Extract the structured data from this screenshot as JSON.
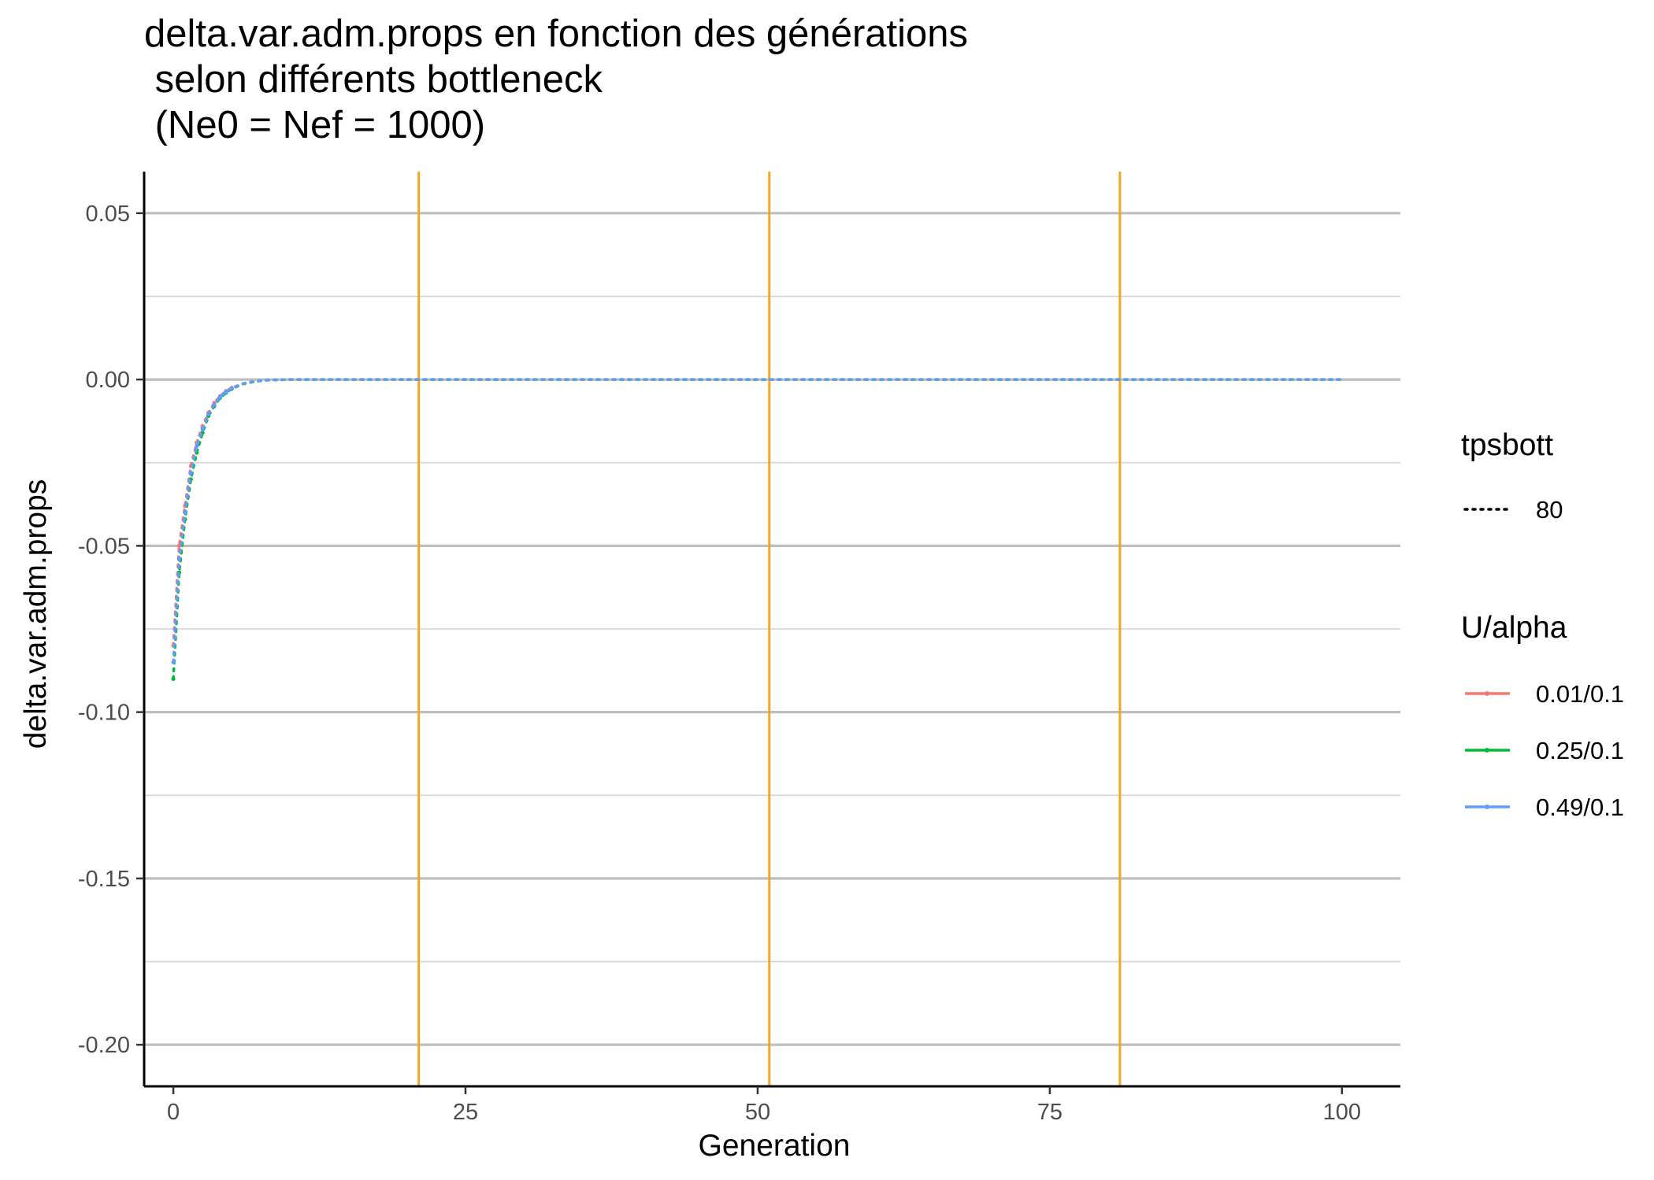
{
  "chart_data": {
    "type": "line",
    "title": "delta.var.adm.props en fonction des générations\n selon différents bottleneck\n (Ne0 = Nef = 1000)",
    "xlabel": "Generation",
    "ylabel": "delta.var.adm.props",
    "xlim": [
      -2.5,
      105
    ],
    "ylim": [
      -0.2125,
      0.0625
    ],
    "x_ticks": [
      0,
      25,
      50,
      75,
      100
    ],
    "x_tick_labels": [
      "0",
      "25",
      "50",
      "75",
      "100"
    ],
    "y_ticks": [
      0.05,
      0.0,
      -0.05,
      -0.1,
      -0.15,
      -0.2
    ],
    "y_tick_labels": [
      "0.05",
      "0.00",
      "-0.05",
      "-0.10",
      "-0.15",
      "-0.20"
    ],
    "y_minor_ticks": [
      0.025,
      -0.025,
      -0.075,
      -0.125,
      -0.175
    ],
    "vlines": [
      21,
      51,
      81
    ],
    "vline_color": "#f5a623",
    "grid": true,
    "linetype_legend": {
      "title": "tpsbott",
      "entries": [
        "80"
      ]
    },
    "color_legend": {
      "title": "U/alpha"
    },
    "x": [
      0,
      0.5,
      1,
      1.5,
      2,
      2.5,
      3,
      3.5,
      4,
      4.5,
      5,
      6,
      7,
      8,
      9,
      10,
      12,
      15,
      20,
      25,
      30,
      40,
      50,
      60,
      70,
      80,
      90,
      100
    ],
    "series": [
      {
        "name": "0.01/0.1",
        "color": "#f8766d",
        "values": [
          -0.08,
          -0.05,
          -0.038,
          -0.026,
          -0.019,
          -0.014,
          -0.01,
          -0.007,
          -0.005,
          -0.0035,
          -0.0025,
          -0.0012,
          -0.0005,
          -0.0002,
          -0.0001,
          0.0,
          0.0,
          0.0,
          0.0,
          0.0,
          0.0,
          0.0,
          0.0,
          0.0,
          0.0,
          0.0,
          0.0,
          0.0
        ]
      },
      {
        "name": "0.25/0.1",
        "color": "#00ba38",
        "values": [
          -0.09,
          -0.058,
          -0.042,
          -0.03,
          -0.022,
          -0.016,
          -0.011,
          -0.008,
          -0.0055,
          -0.004,
          -0.0028,
          -0.0013,
          -0.0006,
          -0.0002,
          -0.0001,
          0.0,
          0.0,
          0.0,
          0.0,
          0.0,
          0.0,
          0.0,
          0.0,
          0.0,
          0.0,
          0.0,
          0.0,
          0.0
        ]
      },
      {
        "name": "0.49/0.1",
        "color": "#619cff",
        "values": [
          -0.085,
          -0.054,
          -0.04,
          -0.028,
          -0.02,
          -0.015,
          -0.0105,
          -0.0075,
          -0.0052,
          -0.0037,
          -0.0026,
          -0.0012,
          -0.0005,
          -0.0002,
          -0.0001,
          0.0,
          0.0,
          0.0,
          0.0,
          0.0,
          0.0,
          0.0,
          0.0,
          0.0,
          0.0,
          0.0,
          0.0,
          0.0
        ]
      }
    ]
  }
}
